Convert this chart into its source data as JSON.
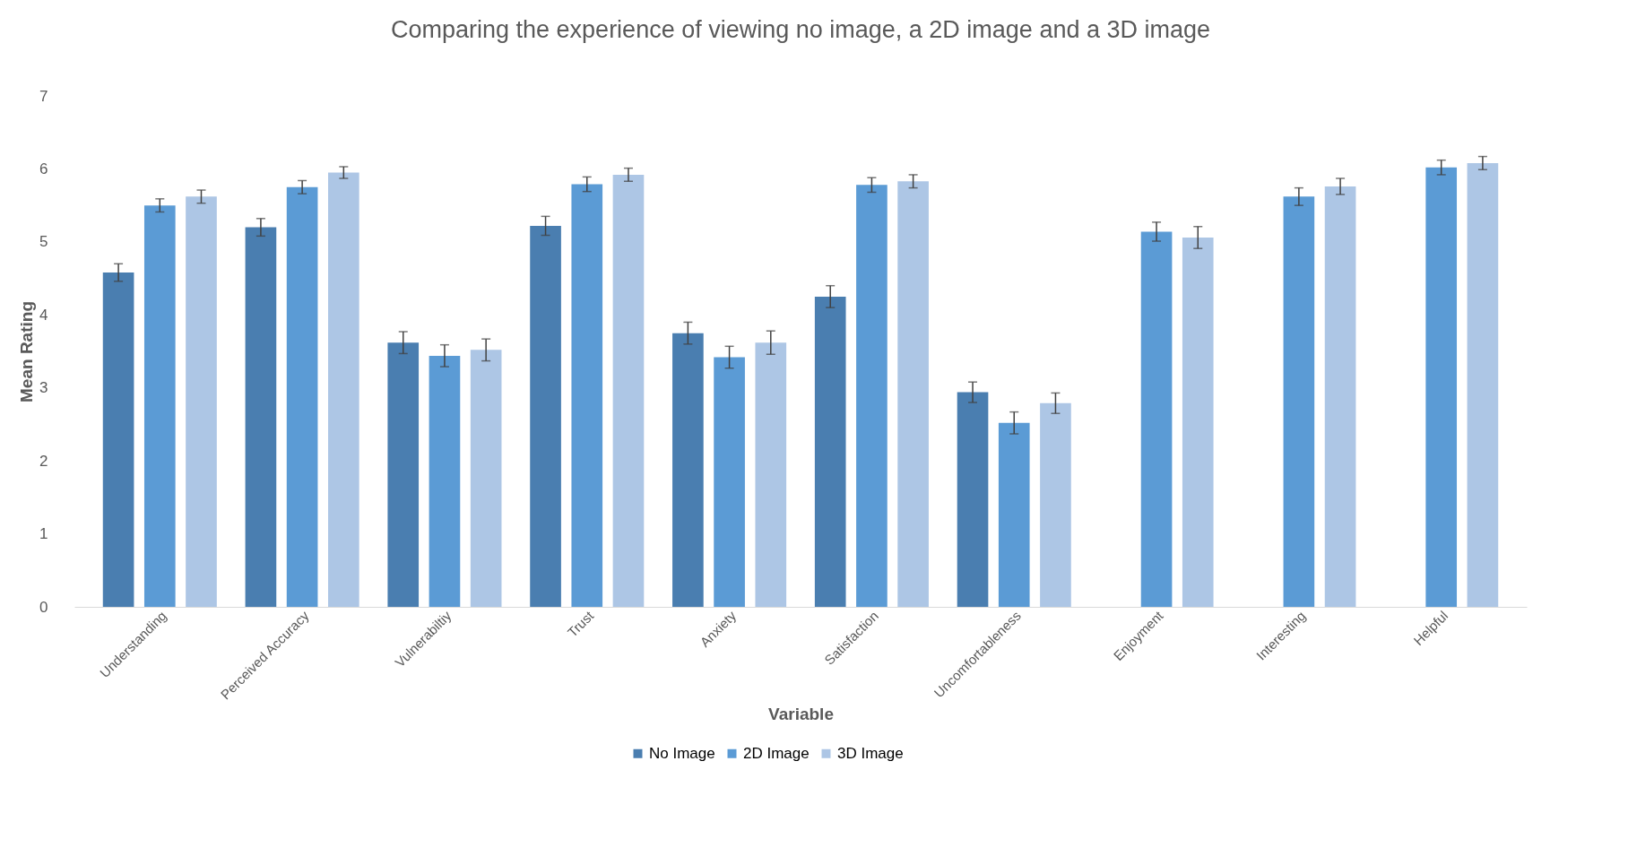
{
  "chart_data": {
    "type": "bar",
    "title": "Comparing the experience of viewing no image, a 2D image and a 3D image",
    "xlabel": "Variable",
    "ylabel": "Mean Rating",
    "categories": [
      "Understanding",
      "Perceived Accuracy",
      "Vulnerabiltiy",
      "Trust",
      "Anxiety",
      "Satisfaction",
      "Uncomfortableness",
      "Enjoyment",
      "Interesting",
      "Helpful"
    ],
    "series": [
      {
        "name": "No Image",
        "color": "#4a7eb0",
        "values": [
          4.58,
          5.2,
          3.62,
          5.22,
          3.75,
          4.25,
          2.94,
          null,
          null,
          null
        ],
        "errors": [
          0.12,
          0.12,
          0.15,
          0.13,
          0.15,
          0.15,
          0.14,
          null,
          null,
          null
        ]
      },
      {
        "name": "2D Image",
        "color": "#5b9bd5",
        "values": [
          5.5,
          5.75,
          3.44,
          5.79,
          3.42,
          5.78,
          2.52,
          5.14,
          5.62,
          6.02
        ],
        "errors": [
          0.09,
          0.09,
          0.15,
          0.1,
          0.15,
          0.1,
          0.15,
          0.13,
          0.12,
          0.1
        ]
      },
      {
        "name": "3D Image",
        "color": "#adc6e5",
        "values": [
          5.62,
          5.95,
          3.52,
          5.92,
          3.62,
          5.83,
          2.79,
          5.06,
          5.76,
          6.08
        ],
        "errors": [
          0.09,
          0.08,
          0.15,
          0.09,
          0.16,
          0.09,
          0.14,
          0.15,
          0.11,
          0.09
        ]
      }
    ],
    "ylim": [
      0,
      7
    ],
    "yticks": [
      {
        "value": 0,
        "label": "0"
      },
      {
        "value": 1,
        "label": "1"
      },
      {
        "value": 2,
        "label": "2"
      },
      {
        "value": 3,
        "label": "3"
      },
      {
        "value": 4,
        "label": "4"
      },
      {
        "value": 5,
        "label": "5"
      },
      {
        "value": 6,
        "label": "6"
      },
      {
        "value": 7,
        "label": "7"
      }
    ],
    "grid": false,
    "legend": "bottom"
  }
}
